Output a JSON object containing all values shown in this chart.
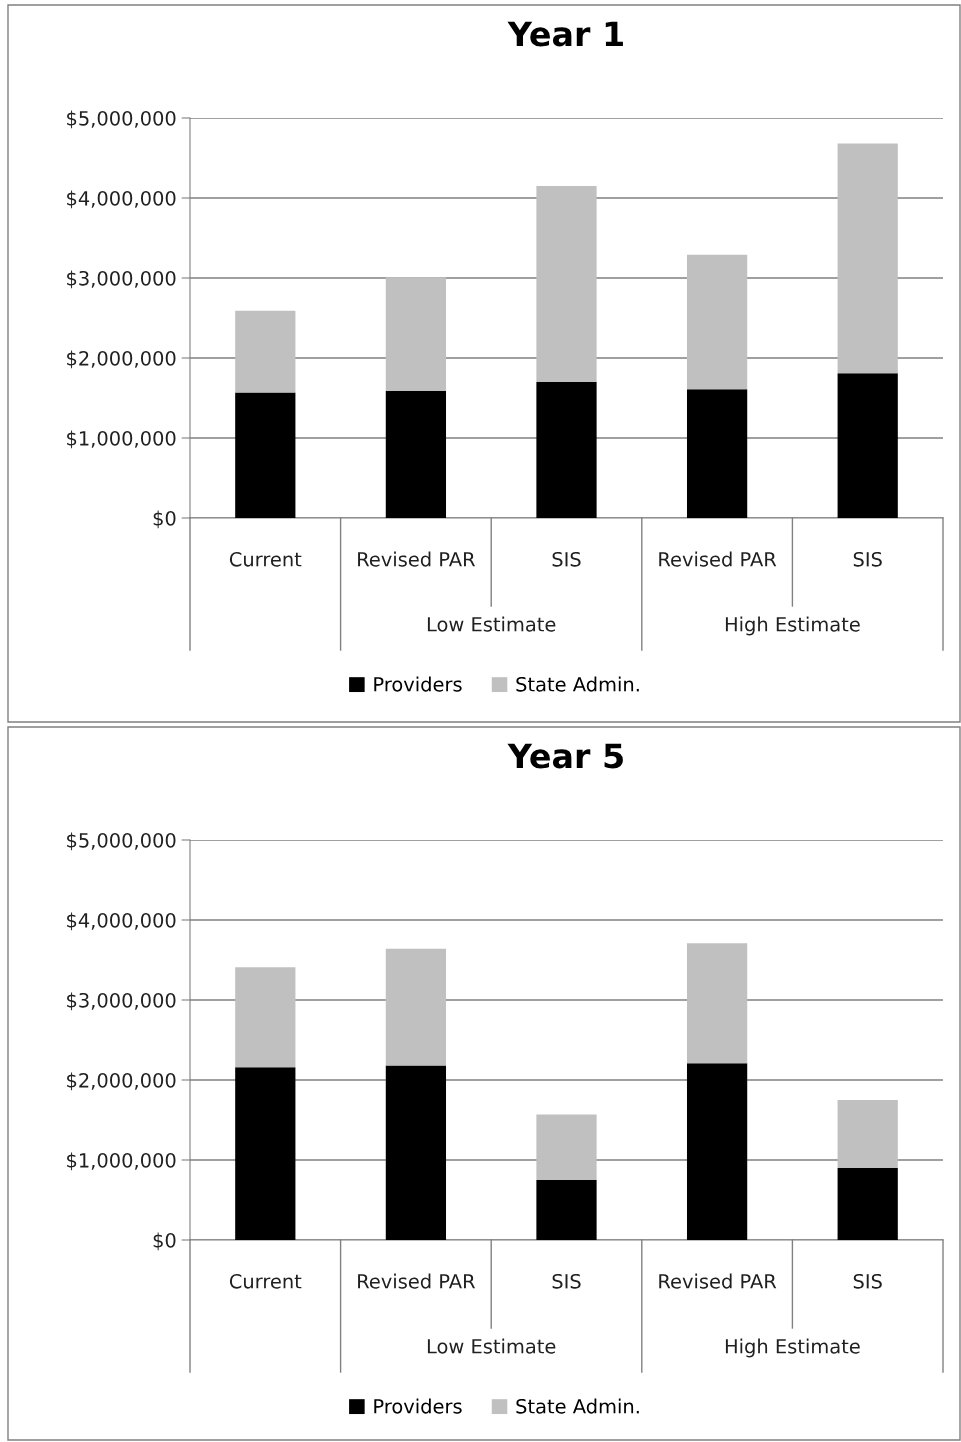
{
  "chart_data": [
    {
      "type": "bar",
      "title": "Year 1",
      "stacked": true,
      "categories": [
        "Current",
        "Revised PAR",
        "SIS",
        "Revised PAR",
        "SIS"
      ],
      "series": [
        {
          "name": "Providers",
          "color": "#000000",
          "values": [
            1570000,
            1590000,
            1700000,
            1610000,
            1810000
          ]
        },
        {
          "name": "State Admin.",
          "color": "#c0c0c0",
          "values": [
            1020000,
            1420000,
            2450000,
            1680000,
            2870000
          ]
        }
      ],
      "annotations": [
        "Low Estimate",
        "High Estimate"
      ],
      "ylim": [
        0,
        5000000
      ],
      "yticks": [
        {
          "value": 0,
          "label": "$0"
        },
        {
          "value": 1000000,
          "label": "$1,000,000"
        },
        {
          "value": 2000000,
          "label": "$2,000,000"
        },
        {
          "value": 3000000,
          "label": "$3,000,000"
        },
        {
          "value": 4000000,
          "label": "$4,000,000"
        },
        {
          "value": 5000000,
          "label": "$5,000,000"
        }
      ],
      "grid": "y",
      "legend": "bottom"
    },
    {
      "type": "bar",
      "title": "Year 5",
      "stacked": true,
      "categories": [
        "Current",
        "Revised PAR",
        "SIS",
        "Revised PAR",
        "SIS"
      ],
      "series": [
        {
          "name": "Providers",
          "color": "#000000",
          "values": [
            2160000,
            2180000,
            750000,
            2210000,
            900000
          ]
        },
        {
          "name": "State Admin.",
          "color": "#c0c0c0",
          "values": [
            1250000,
            1460000,
            820000,
            1500000,
            850000
          ]
        }
      ],
      "annotations": [
        "Low Estimate",
        "High Estimate"
      ],
      "ylim": [
        0,
        5000000
      ],
      "yticks": [
        {
          "value": 0,
          "label": "$0"
        },
        {
          "value": 1000000,
          "label": "$1,000,000"
        },
        {
          "value": 2000000,
          "label": "$2,000,000"
        },
        {
          "value": 3000000,
          "label": "$3,000,000"
        },
        {
          "value": 4000000,
          "label": "$4,000,000"
        },
        {
          "value": 5000000,
          "label": "$5,000,000"
        }
      ],
      "grid": "y",
      "legend": "bottom"
    }
  ]
}
